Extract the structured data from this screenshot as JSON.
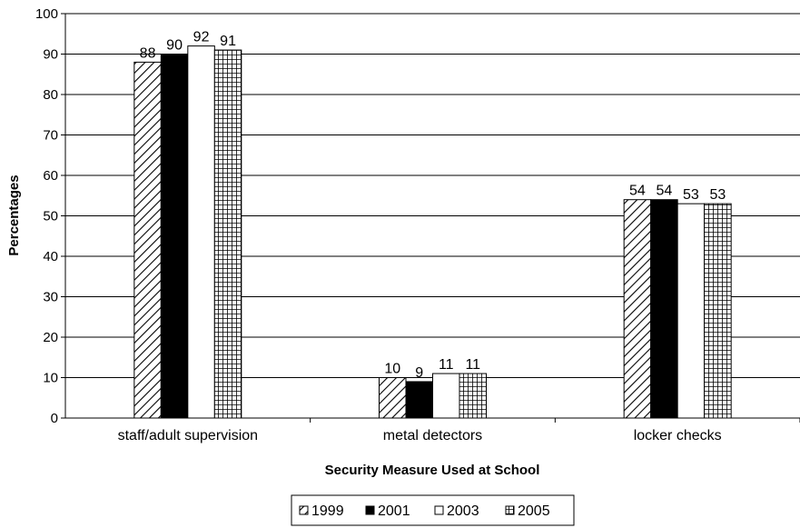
{
  "chart_data": {
    "type": "bar",
    "title": "",
    "xlabel": "Security Measure Used at School",
    "ylabel": "Percentages",
    "ylim": [
      0,
      100
    ],
    "yticks": [
      "0",
      "10",
      "20",
      "30",
      "40",
      "50",
      "60",
      "70",
      "80",
      "90",
      "100"
    ],
    "grid": "horizontal",
    "legend_position": "bottom",
    "categories": [
      "staff/adult supervision",
      "metal detectors",
      "locker checks"
    ],
    "series": [
      {
        "name": "1999",
        "values": [
          88,
          10,
          54
        ],
        "pattern": "diagonal-hatch"
      },
      {
        "name": "2001",
        "values": [
          90,
          9,
          54
        ],
        "pattern": "solid-black"
      },
      {
        "name": "2003",
        "values": [
          92,
          11,
          53
        ],
        "pattern": "white"
      },
      {
        "name": "2005",
        "values": [
          91,
          11,
          53
        ],
        "pattern": "grid"
      }
    ]
  }
}
